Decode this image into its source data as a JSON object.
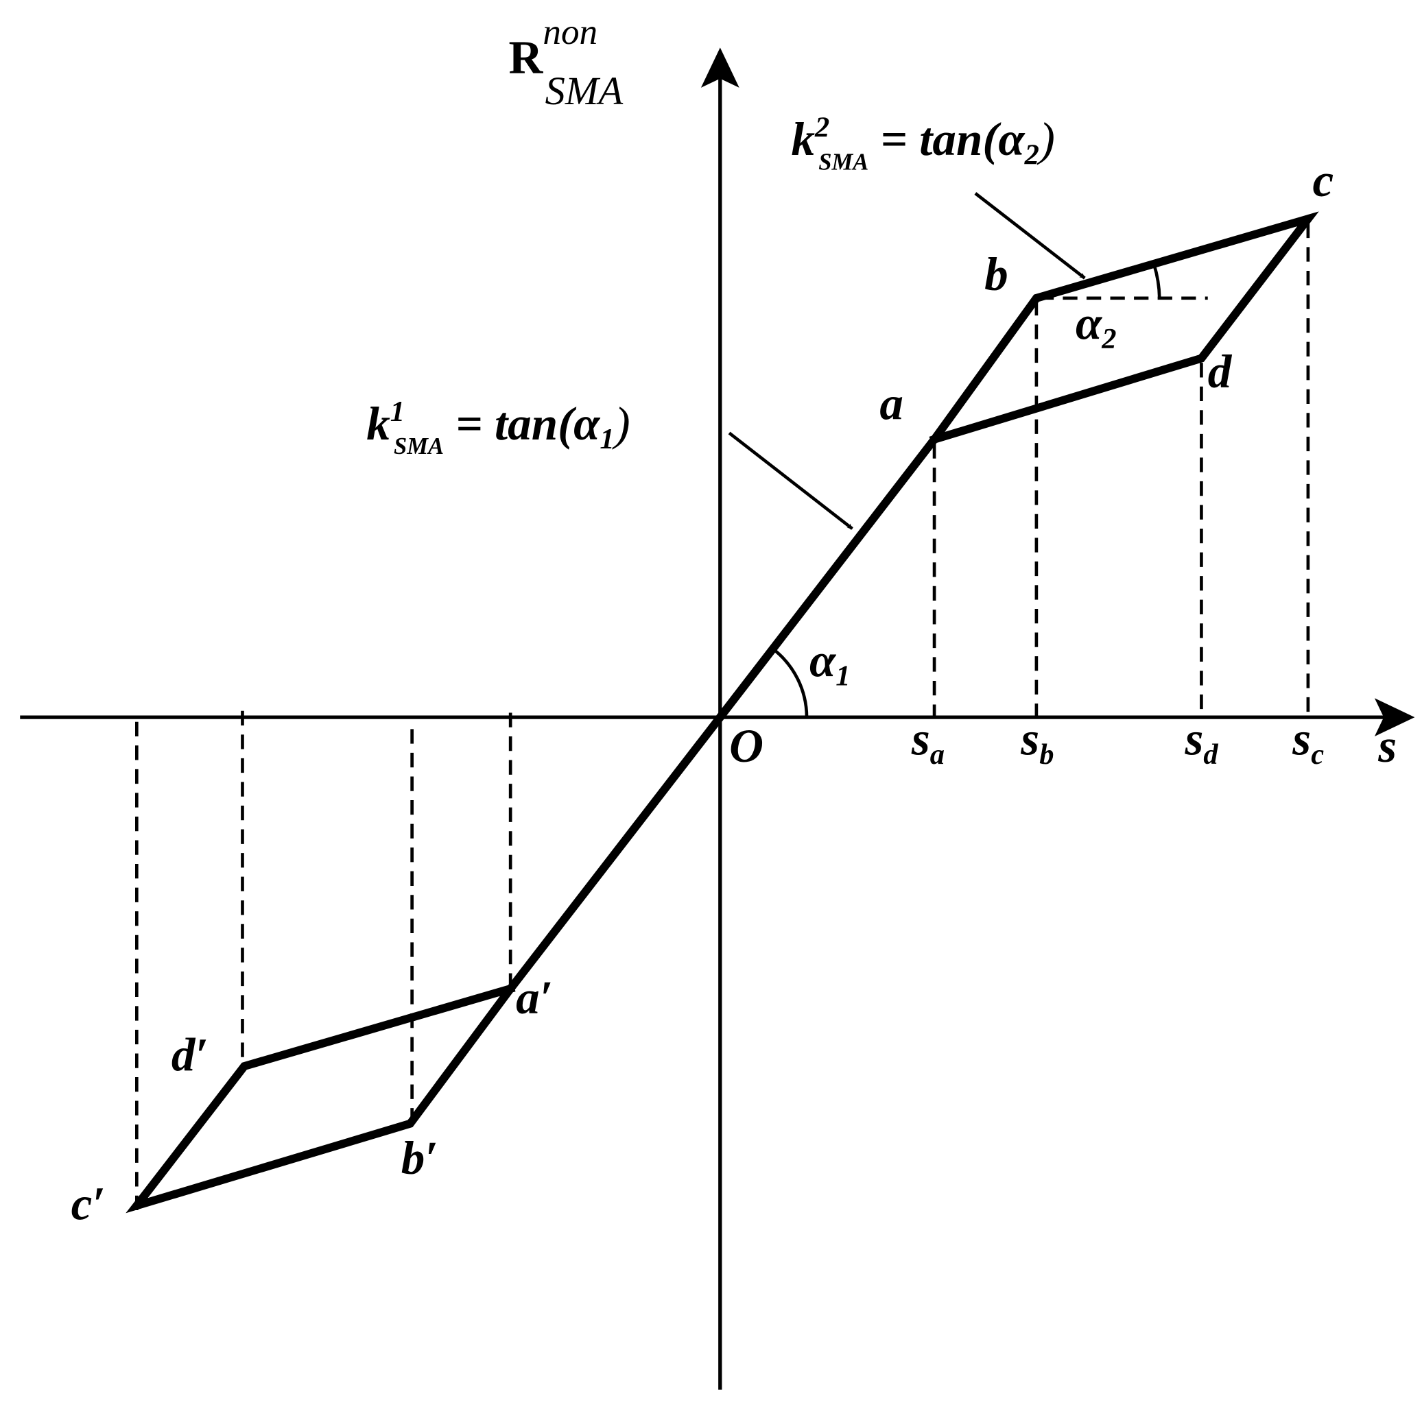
{
  "y_axis_label": {
    "base": "R",
    "sup": "non",
    "sub": "SMA"
  },
  "x_axis_label": "s",
  "origin_label": "O",
  "x_marks": [
    {
      "base": "s",
      "sub": "a"
    },
    {
      "base": "s",
      "sub": "b"
    },
    {
      "base": "s",
      "sub": "d"
    },
    {
      "base": "s",
      "sub": "c"
    }
  ],
  "points": [
    "a",
    "b",
    "c",
    "d",
    "a′",
    "b′",
    "c′",
    "d′"
  ],
  "angles": [
    {
      "base": "α",
      "sub": "1"
    },
    {
      "base": "α",
      "sub": "2"
    }
  ],
  "equations": [
    {
      "base": "k",
      "sup": "1",
      "sub": "SMA",
      "middle": " = tan(",
      "greek": "α",
      "greek_sub": "1",
      "end": ")"
    },
    {
      "base": "k",
      "sup": "2",
      "sub": "SMA",
      "middle": " = tan(",
      "greek": "α",
      "greek_sub": "2",
      "end": ")"
    }
  ]
}
